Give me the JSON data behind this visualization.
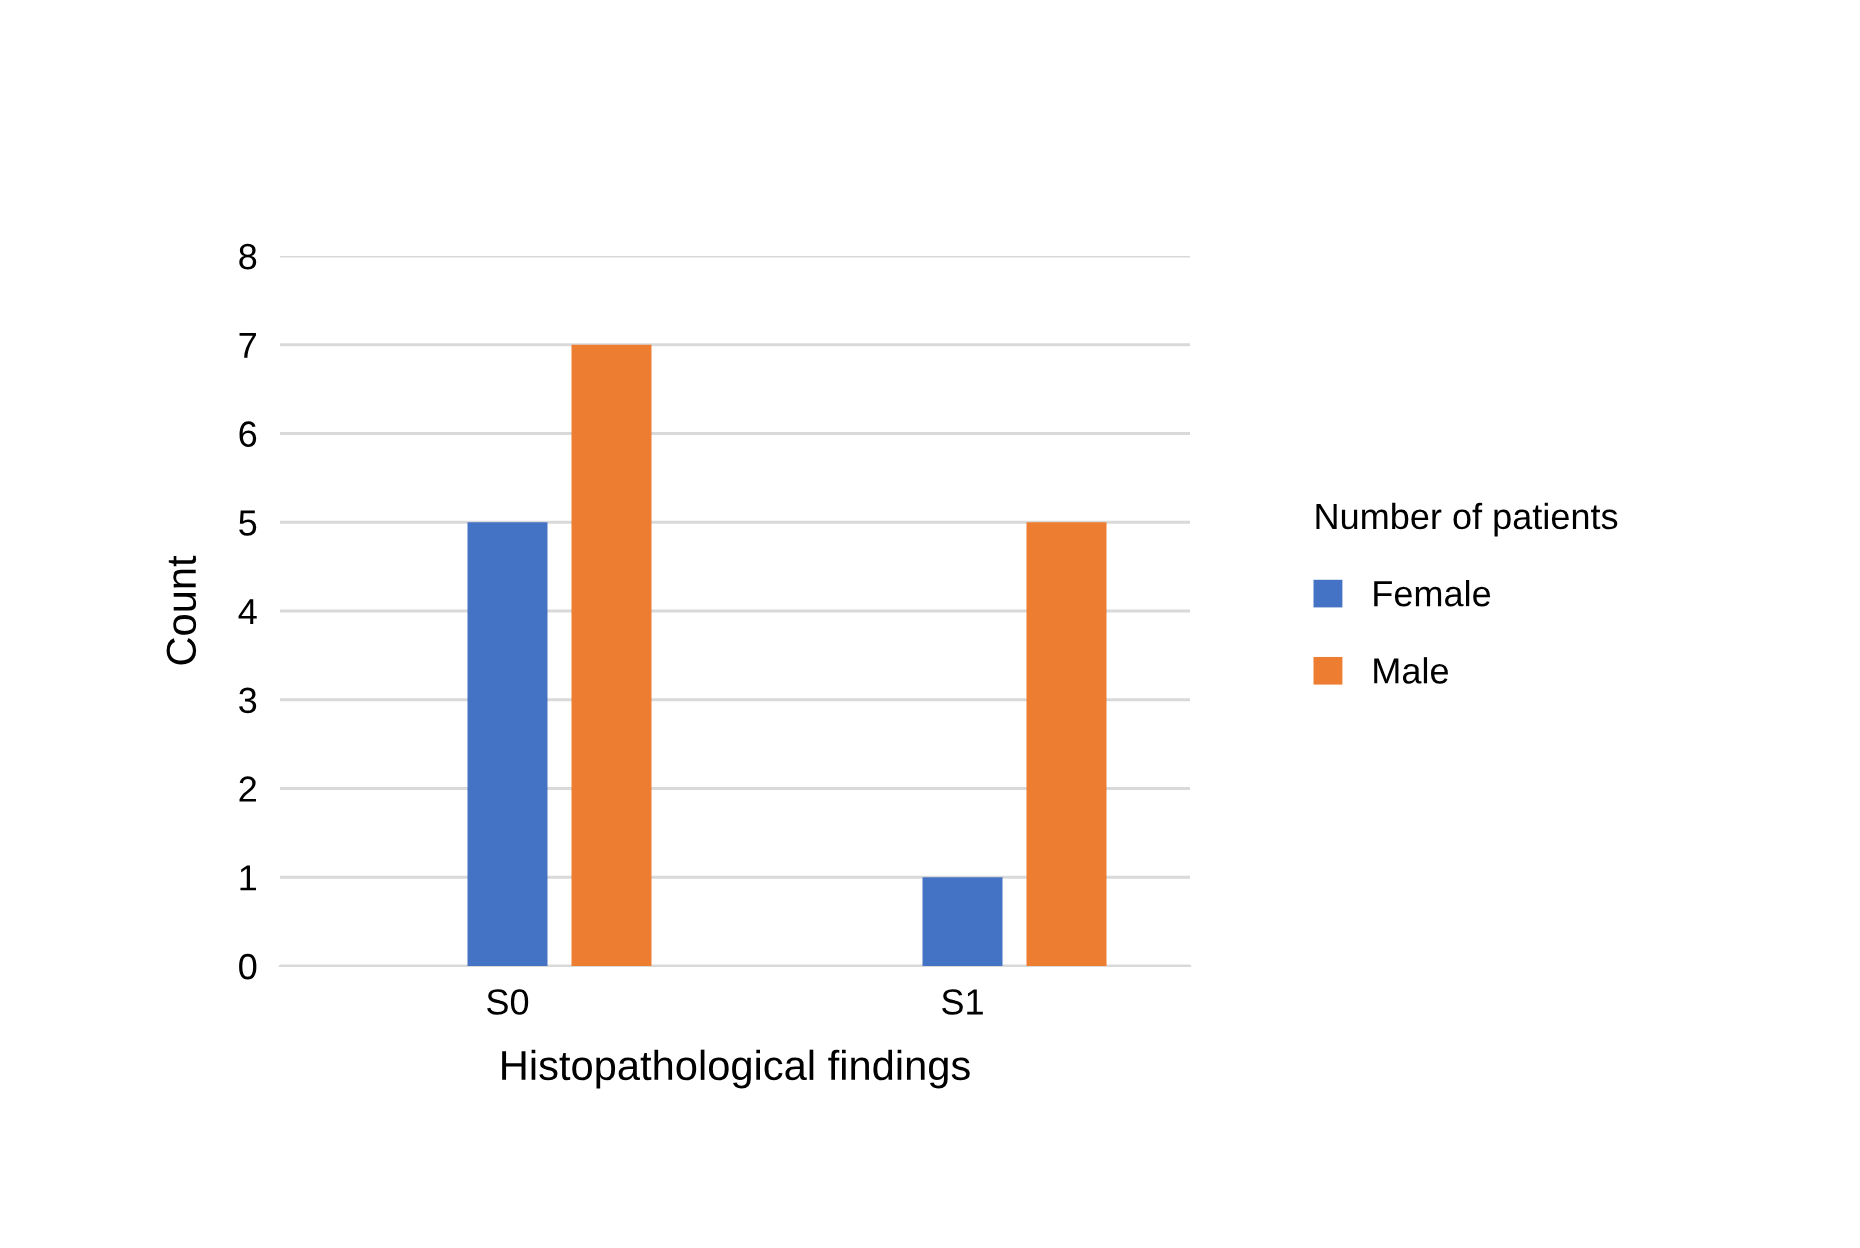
{
  "chart_data": {
    "type": "bar",
    "xlabel": "Histopathological findings",
    "ylabel": "Count",
    "categories": [
      "S0",
      "S1"
    ],
    "series": [
      {
        "name": "Female",
        "color": "#4472c4",
        "values": [
          5,
          1
        ]
      },
      {
        "name": "Male",
        "color": "#ed7d31",
        "values": [
          7,
          5
        ]
      }
    ],
    "legend_title": "Number of patients",
    "legend": "right",
    "ylim": [
      0,
      8
    ],
    "yticks": [
      0,
      1,
      2,
      3,
      4,
      5,
      6,
      7,
      8
    ],
    "grid": "y"
  }
}
